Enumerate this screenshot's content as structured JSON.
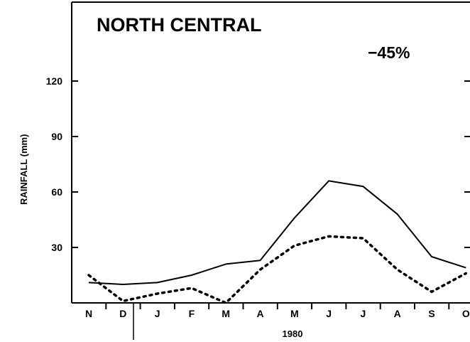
{
  "chart_data": {
    "type": "line",
    "title": "NORTH CENTRAL",
    "annotation": "−45%",
    "ylabel": "RAINFALL (mm)",
    "xlabel": "1980",
    "categories": [
      "N",
      "D",
      "J",
      "F",
      "M",
      "A",
      "M",
      "J",
      "J",
      "A",
      "S",
      "O"
    ],
    "y_ticks": [
      30,
      60,
      90,
      120
    ],
    "ylim": [
      0,
      150
    ],
    "series": [
      {
        "style": "solid",
        "values": [
          11,
          10,
          11,
          15,
          21,
          23,
          46,
          66,
          63,
          48,
          25,
          19
        ]
      },
      {
        "style": "dotted",
        "values": [
          15,
          1,
          5,
          8,
          0,
          18,
          31,
          36,
          35,
          18,
          6,
          16
        ]
      }
    ],
    "grid": false,
    "legend": "none"
  }
}
